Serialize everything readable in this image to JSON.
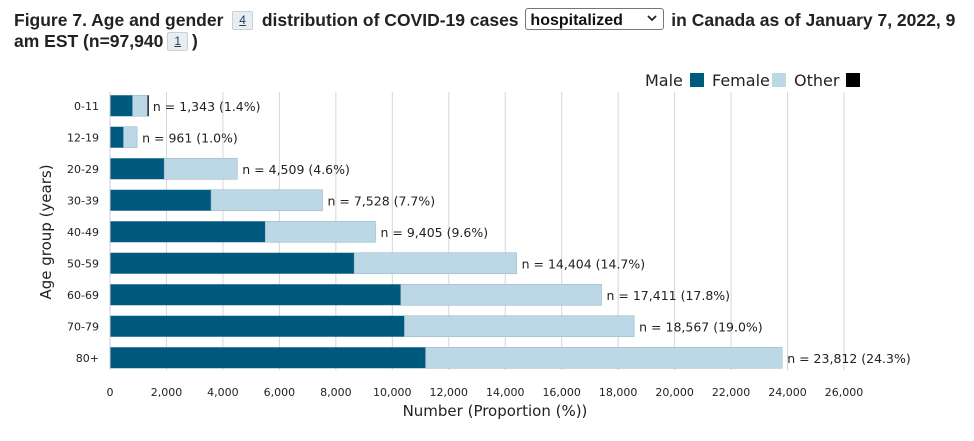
{
  "title": {
    "part1": "Figure 7. Age and gender",
    "footnote1": "4",
    "part2": "distribution of COVID-19 cases",
    "select_value": "hospitalized",
    "part3": "in Canada as of January 7, 2022, 9 am EST (n=97,940",
    "footnote2": "1",
    "part4": ")"
  },
  "legend": {
    "items": [
      {
        "label": "Male",
        "color": "#005a7f"
      },
      {
        "label": "Female",
        "color": "#bcd7e6"
      },
      {
        "label": "Other",
        "color": "#000000"
      }
    ]
  },
  "chart_data": {
    "type": "bar",
    "orientation": "horizontal",
    "stacked": true,
    "categories": [
      "0-11",
      "12-19",
      "20-29",
      "30-39",
      "40-49",
      "50-59",
      "60-69",
      "70-79",
      "80+"
    ],
    "series": [
      {
        "name": "Male",
        "values": [
          800,
          480,
          1920,
          3580,
          5500,
          8650,
          10300,
          10430,
          11180
        ]
      },
      {
        "name": "Female",
        "values": [
          530,
          481,
          2589,
          3948,
          3905,
          5754,
          7111,
          8137,
          12632
        ]
      },
      {
        "name": "Other",
        "values": [
          13,
          0,
          0,
          0,
          0,
          0,
          0,
          0,
          0
        ]
      }
    ],
    "data_labels": [
      "n = 1,343 (1.4%)",
      "n = 961 (1.0%)",
      "n = 4,509 (4.6%)",
      "n = 7,528 (7.7%)",
      "n = 9,405 (9.6%)",
      "n = 14,404 (14.7%)",
      "n = 17,411 (17.8%)",
      "n = 18,567 (19.0%)",
      "n = 23,812 (24.3%)"
    ],
    "xlabel": "Number (Proportion (%))",
    "ylabel": "Age group (years)",
    "xlim": [
      0,
      26000
    ],
    "xticks": [
      0,
      2000,
      4000,
      6000,
      8000,
      10000,
      12000,
      14000,
      16000,
      18000,
      20000,
      22000,
      24000,
      26000
    ],
    "xtick_labels": [
      "0",
      "2,000",
      "4,000",
      "6,000",
      "8,000",
      "10,000",
      "12,000",
      "14,000",
      "16,000",
      "18,000",
      "20,000",
      "22,000",
      "24,000",
      "26,000"
    ],
    "grid": "vertical",
    "legend_position": "top-right"
  }
}
